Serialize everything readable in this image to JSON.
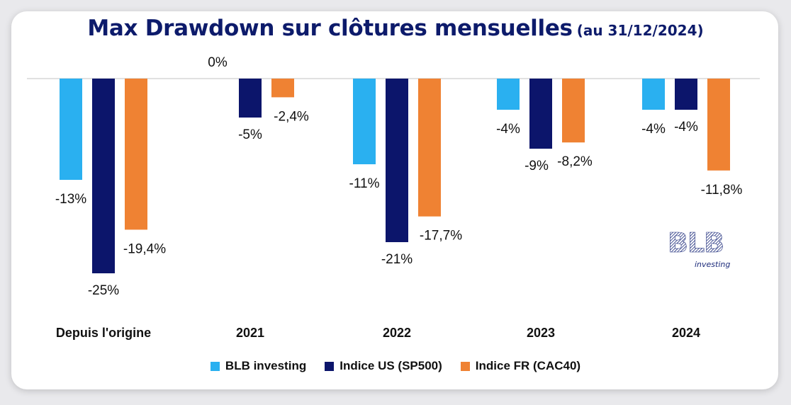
{
  "title": "Max Drawdown sur clôtures mensuelles",
  "subtitle": "(au 31/12/2024)",
  "logo": {
    "wordmark": "BLB",
    "tagline": "investing"
  },
  "chart_data": {
    "type": "bar",
    "title": "Max Drawdown sur clôtures mensuelles (au 31/12/2024)",
    "categories": [
      "Depuis l'origine",
      "2021",
      "2022",
      "2023",
      "2024"
    ],
    "series": [
      {
        "name": "BLB investing",
        "color": "#2ab0f0",
        "values": [
          -13,
          0,
          -11,
          -4,
          -4
        ],
        "labels": [
          "-13%",
          "0%",
          "-11%",
          "-4%",
          "-4%"
        ]
      },
      {
        "name": "Indice US (SP500)",
        "color": "#0c156b",
        "values": [
          -25,
          -5,
          -21,
          -9,
          -4
        ],
        "labels": [
          "-25%",
          "-5%",
          "-21%",
          "-9%",
          "-4%"
        ]
      },
      {
        "name": "Indice FR (CAC40)",
        "color": "#ef8233",
        "values": [
          -19.4,
          -2.4,
          -17.7,
          -8.2,
          -11.8
        ],
        "labels": [
          "-19,4%",
          "-2,4%",
          "-17,7%",
          "-8,2%",
          "-11,8%"
        ]
      }
    ],
    "ylim": [
      -25,
      0
    ],
    "grid": false,
    "legend": "bottom"
  }
}
